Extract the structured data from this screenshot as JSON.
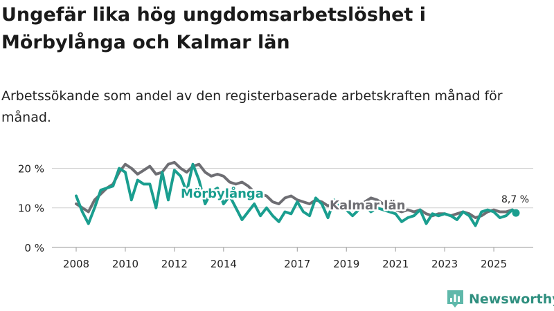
{
  "title": "Ungefär lika hög ungdomsarbetslöshet i Mörbylånga och Kalmar län",
  "subtitle": "Arbetssökande som andel av den registerbaserade arbetskraften månad för månad.",
  "brand": {
    "name": "Newsworthy",
    "icon": "newsworthy-logo-icon"
  },
  "colors": {
    "morbylanga": "#1a9e8f",
    "kalmar": "#6e6e73",
    "grid": "#cfcfcf",
    "text": "#222222"
  },
  "chart_data": {
    "type": "line",
    "title": "Ungefär lika hög ungdomsarbetslöshet i Mörbylånga och Kalmar län",
    "xlabel": "",
    "ylabel": "",
    "ylim": [
      0,
      22
    ],
    "yticks": [
      0,
      10,
      20
    ],
    "ytick_labels": [
      "0 %",
      "10 %",
      "20 %"
    ],
    "xticks": [
      2008,
      2010,
      2012,
      2014,
      2017,
      2019,
      2021,
      2023,
      2025
    ],
    "xtick_labels": [
      "2008",
      "2010",
      "2012",
      "2014",
      "2017",
      "2019",
      "2021",
      "2023",
      "2025"
    ],
    "last_value_label": "8,7 %",
    "last_value": 8.7,
    "series": [
      {
        "name": "Mörbylånga",
        "x": [
          2008.0,
          2008.25,
          2008.5,
          2008.75,
          2009.0,
          2009.25,
          2009.5,
          2009.75,
          2010.0,
          2010.25,
          2010.5,
          2010.75,
          2011.0,
          2011.25,
          2011.5,
          2011.75,
          2012.0,
          2012.25,
          2012.5,
          2012.75,
          2013.0,
          2013.25,
          2013.5,
          2013.75,
          2014.0,
          2014.25,
          2014.5,
          2014.75,
          2015.0,
          2015.25,
          2015.5,
          2015.75,
          2016.0,
          2016.25,
          2016.5,
          2016.75,
          2017.0,
          2017.25,
          2017.5,
          2017.75,
          2018.0,
          2018.25,
          2018.5,
          2018.75,
          2019.0,
          2019.25,
          2019.5,
          2019.75,
          2020.0,
          2020.25,
          2020.5,
          2020.75,
          2021.0,
          2021.25,
          2021.5,
          2021.75,
          2022.0,
          2022.25,
          2022.5,
          2022.75,
          2023.0,
          2023.25,
          2023.5,
          2023.75,
          2024.0,
          2024.25,
          2024.5,
          2024.75,
          2025.0,
          2025.25,
          2025.5,
          2025.75,
          2025.9
        ],
        "values": [
          13.0,
          9.0,
          6.0,
          10.0,
          14.5,
          15.0,
          15.5,
          20.0,
          19.0,
          12.0,
          17.0,
          16.0,
          16.0,
          10.0,
          19.0,
          12.0,
          19.5,
          18.0,
          14.0,
          21.0,
          17.0,
          11.0,
          14.0,
          15.0,
          11.0,
          13.0,
          10.0,
          7.0,
          9.0,
          11.0,
          8.0,
          10.0,
          8.0,
          6.5,
          9.0,
          8.5,
          11.5,
          9.0,
          8.0,
          12.5,
          11.0,
          7.5,
          12.0,
          10.0,
          9.5,
          8.0,
          9.5,
          10.5,
          9.0,
          10.0,
          9.5,
          9.0,
          8.5,
          6.5,
          7.5,
          8.0,
          9.5,
          6.0,
          8.5,
          8.0,
          8.5,
          8.0,
          7.0,
          9.0,
          8.0,
          5.5,
          9.0,
          9.5,
          9.0,
          7.5,
          8.0,
          9.5,
          8.7
        ]
      },
      {
        "name": "Kalmar län",
        "x": [
          2008.0,
          2008.25,
          2008.5,
          2008.75,
          2009.0,
          2009.25,
          2009.5,
          2009.75,
          2010.0,
          2010.25,
          2010.5,
          2010.75,
          2011.0,
          2011.25,
          2011.5,
          2011.75,
          2012.0,
          2012.25,
          2012.5,
          2012.75,
          2013.0,
          2013.25,
          2013.5,
          2013.75,
          2014.0,
          2014.25,
          2014.5,
          2014.75,
          2015.0,
          2015.25,
          2015.5,
          2015.75,
          2016.0,
          2016.25,
          2016.5,
          2016.75,
          2017.0,
          2017.25,
          2017.5,
          2017.75,
          2018.0,
          2018.25,
          2018.5,
          2018.75,
          2019.0,
          2019.25,
          2019.5,
          2019.75,
          2020.0,
          2020.25,
          2020.5,
          2020.75,
          2021.0,
          2021.25,
          2021.5,
          2021.75,
          2022.0,
          2022.25,
          2022.5,
          2022.75,
          2023.0,
          2023.25,
          2023.5,
          2023.75,
          2024.0,
          2024.25,
          2024.5,
          2024.75,
          2025.0,
          2025.25,
          2025.5,
          2025.75,
          2025.9
        ],
        "values": [
          11.0,
          10.0,
          9.0,
          12.0,
          13.5,
          15.0,
          16.0,
          19.0,
          21.0,
          20.0,
          18.5,
          19.5,
          20.5,
          18.5,
          19.0,
          21.0,
          21.5,
          20.0,
          19.0,
          20.5,
          21.0,
          19.0,
          18.0,
          18.5,
          18.0,
          16.5,
          16.0,
          16.5,
          15.5,
          14.0,
          13.5,
          13.0,
          11.5,
          11.0,
          12.5,
          13.0,
          12.0,
          11.5,
          11.0,
          12.0,
          11.5,
          10.5,
          11.0,
          11.5,
          10.5,
          9.5,
          10.0,
          11.5,
          12.5,
          12.0,
          11.0,
          10.0,
          9.5,
          9.0,
          9.5,
          9.0,
          9.5,
          8.5,
          8.0,
          8.5,
          8.5,
          8.0,
          8.5,
          9.0,
          8.5,
          7.5,
          8.0,
          9.0,
          9.5,
          9.0,
          9.0,
          9.5,
          9.0
        ]
      }
    ]
  }
}
